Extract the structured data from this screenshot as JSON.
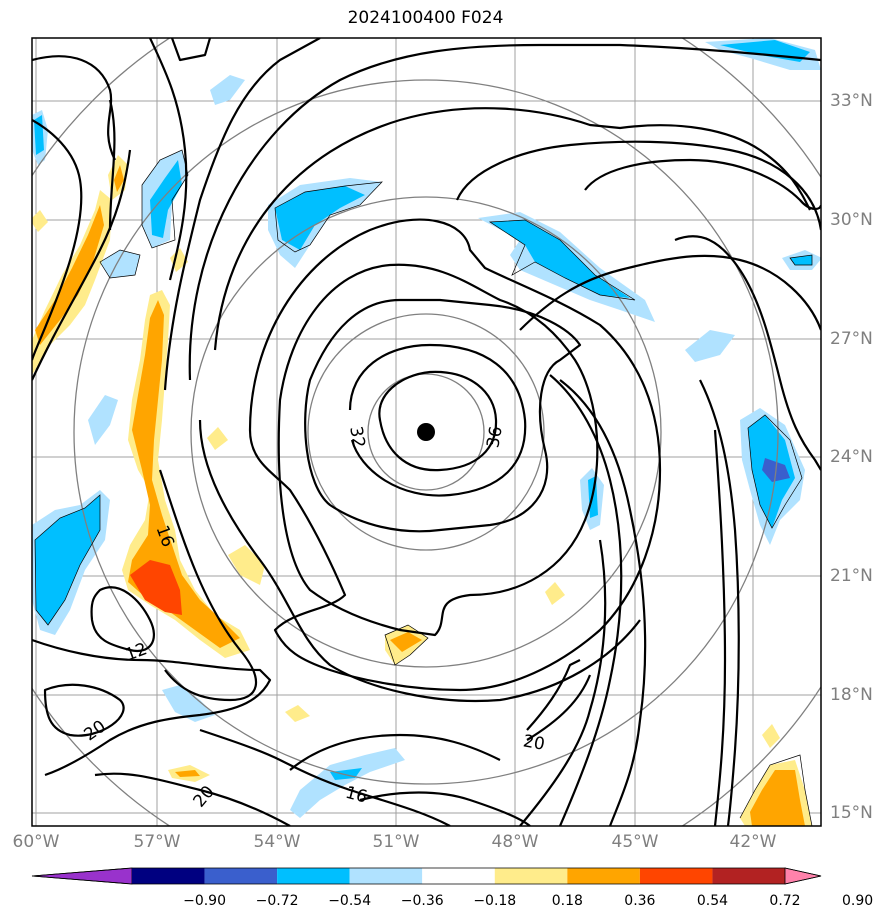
{
  "title": "2024100400 F024",
  "map": {
    "lon_labels": [
      "60°W",
      "57°W",
      "54°W",
      "51°W",
      "48°W",
      "45°W",
      "42°W"
    ],
    "lat_labels": [
      "33°N",
      "30°N",
      "27°N",
      "24°N",
      "21°N",
      "18°N",
      "15°N"
    ],
    "contour_labels": [
      "32",
      "36",
      "16",
      "12",
      "20",
      "20",
      "20",
      "16"
    ],
    "center_marker": "storm-center-dot"
  },
  "colorbar": {
    "ticks": [
      "−0.90",
      "−0.72",
      "−0.54",
      "−0.36",
      "−0.18",
      "0.18",
      "0.36",
      "0.54",
      "0.72",
      "0.90"
    ],
    "colors": [
      "#9932cc",
      "#000080",
      "#3a5fcd",
      "#00bfff",
      "#b0e2ff",
      "#ffffff",
      "#ffec8b",
      "#ffa500",
      "#ff4500",
      "#b22222",
      "#ff82ab"
    ]
  }
}
